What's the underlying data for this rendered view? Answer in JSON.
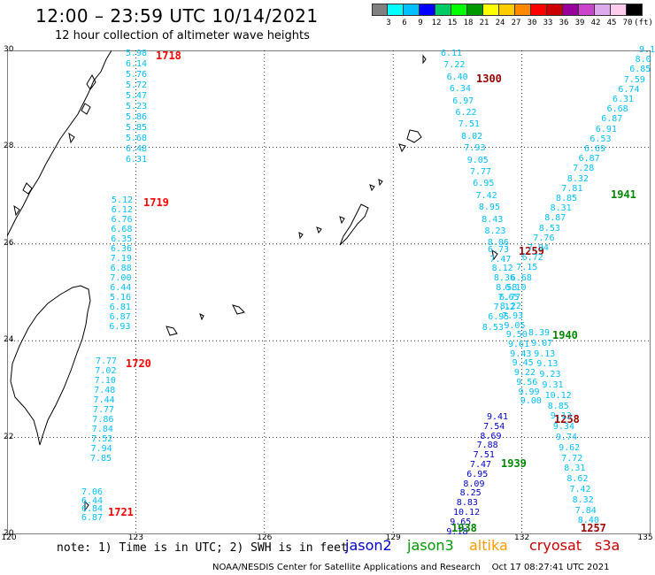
{
  "header": {
    "title": "12:00 – 23:59 UTC 10/14/2021",
    "subtitle": "12 hour collection of altimeter wave heights"
  },
  "colorbar": {
    "labels": [
      "3",
      "6",
      "9",
      "12",
      "15",
      "18",
      "21",
      "24",
      "27",
      "30",
      "33",
      "36",
      "39",
      "42",
      "45",
      "70",
      "(ft)"
    ],
    "colors": [
      "#808080",
      "#00ffff",
      "#00bfff",
      "#0000ff",
      "#00cc66",
      "#00ff00",
      "#009900",
      "#ffff00",
      "#ffcc00",
      "#ff8800",
      "#ff0000",
      "#cc0000",
      "#990099",
      "#cc44cc",
      "#ddaaee",
      "#ffccee",
      "#000000"
    ]
  },
  "map": {
    "lon_range": [
      120,
      135
    ],
    "lat_range": [
      20,
      30
    ],
    "lat_labels": [
      "30",
      "28",
      "26",
      "24",
      "22",
      "20"
    ],
    "lon_labels": [
      "120",
      "123",
      "126",
      "129",
      "132",
      "135"
    ],
    "grid": "dotted"
  },
  "passes": [
    {
      "satellite": "cryosat",
      "color": "#00bfff",
      "time": "1718",
      "time_color": "#ff0000",
      "values": [
        "5.98",
        "6.14",
        "5.76",
        "5.72",
        "5.47",
        "5.23",
        "5.86",
        "5.85",
        "5.68",
        "6.48",
        "6.31"
      ]
    },
    {
      "satellite": "cryosat",
      "color": "#00bfff",
      "time": "1719",
      "time_color": "#ff0000",
      "values": [
        "5.12",
        "6.12",
        "6.76",
        "6.68",
        "6.35",
        "6.36",
        "7.19",
        "6.88",
        "7.00",
        "6.44",
        "5.16",
        "6.81",
        "6.87",
        "6.93"
      ]
    },
    {
      "satellite": "cryosat",
      "color": "#00bfff",
      "time": "1720",
      "time_color": "#ff0000",
      "values": [
        "7.77",
        "7.02",
        "7.10",
        "7.48",
        "7.44",
        "7.77",
        "7.86",
        "7.84",
        "7.52",
        "7.94",
        "7.85"
      ]
    },
    {
      "satellite": "cryosat",
      "color": "#00bfff",
      "time": "1721",
      "time_color": "#ff0000",
      "values": [
        "7.06",
        "6.44",
        "6.84",
        "6.87"
      ]
    },
    {
      "satellite": "cryosat",
      "color": "#00bfff",
      "time": "1300",
      "time_color": "#990000",
      "values": [
        "6.11",
        "7.22",
        "6.40",
        "6.34",
        "6.97",
        "6.22",
        "7.51",
        "8.02",
        "7.93",
        "9.05",
        "7.77",
        "6.95",
        "7.42",
        "8.95",
        "8.43",
        "8.23",
        "8.06"
      ]
    },
    {
      "satellite": "cryosat",
      "color": "#00bfff",
      "time": "1259",
      "time_color": "#990000",
      "values": [
        "6.73",
        "7.47",
        "8.12",
        "8.36",
        "8.58",
        "7.65",
        "8.22",
        "7.93",
        "9.05",
        "9.50",
        "9.61",
        "9.43",
        "9.45",
        "9.22",
        "9.56",
        "9.99",
        "9.00"
      ]
    },
    {
      "satellite": "cryosat",
      "color": "#0000cc",
      "time": "1258",
      "time_color": "#990000",
      "values": [
        "9.41",
        "7.54",
        "8.69",
        "7.88",
        "7.51",
        "7.47",
        "6.95",
        "8.09",
        "8.25",
        "8.83",
        "10.12",
        "9.65",
        "9.18"
      ]
    },
    {
      "satellite": "jason3",
      "color": "#00bfff",
      "time": "1941",
      "time_color": "#008800",
      "values": [
        "9.1",
        "8.0",
        "6.85",
        "7.59",
        "6.74",
        "6.31",
        "6.68",
        "6.87",
        "6.91",
        "6.53",
        "6.69",
        "6.87",
        "7.28",
        "8.32",
        "7.81",
        "8.85",
        "8.31",
        "8.87",
        "8.53",
        "7.76",
        "7.94",
        "6.72",
        "7.15",
        "6.68",
        "6.10",
        "6.77",
        "7.12",
        "6.95",
        "8.53"
      ]
    },
    {
      "satellite": "jason3",
      "color": "#00bfff",
      "time": "1940",
      "time_color": "#008800",
      "values": [
        "8.39",
        "9.07",
        "9.13",
        "9.13",
        "9.23",
        "9.31",
        "10.12",
        "8.85",
        "9.13",
        "9.34",
        "9.74",
        "9.62",
        "7.72",
        "8.31",
        "8.62",
        "7.42",
        "8.32",
        "7.84",
        "8.40"
      ]
    },
    {
      "satellite": "jason3",
      "color": "#00bfff",
      "time": "1939",
      "time_color": "#008800",
      "values": []
    },
    {
      "satellite": "jason3",
      "color": "#00bfff",
      "time": "1938",
      "time_color": "#008800",
      "values": []
    },
    {
      "satellite": "cryosat",
      "color": "#00bfff",
      "time": "1257",
      "time_color": "#990000",
      "values": []
    }
  ],
  "legend": {
    "note": "note:  1) Time is in UTC;  2) SWH is in feet",
    "satellites": [
      {
        "name": "jason2",
        "color": "#0000cc"
      },
      {
        "name": "jason3",
        "color": "#009900"
      },
      {
        "name": "altika",
        "color": "#ff9900"
      },
      {
        "name": "cryosat",
        "color": "#cc0000"
      },
      {
        "name": "s3a",
        "color": "#cc0000"
      }
    ],
    "credit": "NOAA/NESDIS Center for Satellite Applications and Research    Oct 17 08:27:41 UTC 2021"
  }
}
